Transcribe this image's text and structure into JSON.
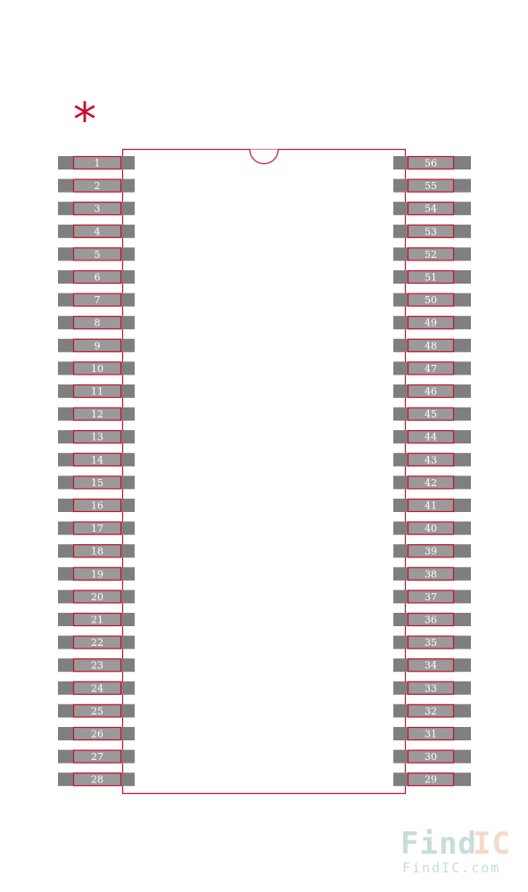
{
  "pin1_marker": "*",
  "pins": {
    "left": [
      "1",
      "2",
      "3",
      "4",
      "5",
      "6",
      "7",
      "8",
      "9",
      "10",
      "11",
      "12",
      "13",
      "14",
      "15",
      "16",
      "17",
      "18",
      "19",
      "20",
      "21",
      "22",
      "23",
      "24",
      "25",
      "26",
      "27",
      "28"
    ],
    "right": [
      "56",
      "55",
      "54",
      "53",
      "52",
      "51",
      "50",
      "49",
      "48",
      "47",
      "46",
      "45",
      "44",
      "43",
      "42",
      "41",
      "40",
      "39",
      "38",
      "37",
      "36",
      "35",
      "34",
      "33",
      "32",
      "31",
      "30",
      "29"
    ]
  },
  "watermark": {
    "logo_part1": "Find",
    "logo_part2": "IC",
    "url": "FindIC.com"
  },
  "colors": {
    "outline": "#c8102e",
    "pad": "#7f7f7f",
    "pad_inner": "#9a9a9a",
    "logo_find": "#c9ddd8",
    "logo_ic": "#f6d9c9"
  }
}
